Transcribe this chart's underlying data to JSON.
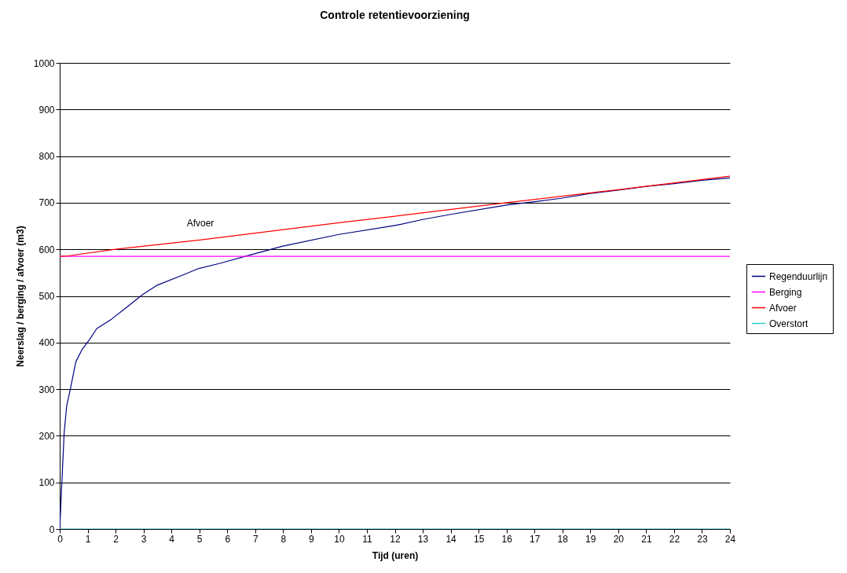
{
  "chart_data": {
    "type": "line",
    "title": "Controle retentievoorziening",
    "xlabel": "Tijd (uren)",
    "ylabel": "Neerslag / berging / afvoer (m3)",
    "xlim": [
      0,
      24
    ],
    "ylim": [
      0,
      1000
    ],
    "xticks": [
      0,
      1,
      2,
      3,
      4,
      5,
      6,
      7,
      8,
      9,
      10,
      11,
      12,
      13,
      14,
      15,
      16,
      17,
      18,
      19,
      20,
      21,
      22,
      23,
      24
    ],
    "yticks": [
      0,
      100,
      200,
      300,
      400,
      500,
      600,
      700,
      800,
      900,
      1000
    ],
    "grid": "y",
    "legend": "right",
    "annotations": [
      "Afvoer"
    ],
    "series": [
      {
        "name": "Regenduurlijn",
        "color": "#000080",
        "x": [
          0,
          0.16,
          0.25,
          0.39,
          0.58,
          0.8,
          1.05,
          1.33,
          1.85,
          2.36,
          2.97,
          3.49,
          4.42,
          4.98,
          5.74,
          6.77,
          7.99,
          10,
          12,
          13,
          14,
          16,
          17,
          18,
          19,
          20,
          21,
          22,
          23,
          24
        ],
        "values": [
          0,
          207,
          264,
          303,
          359,
          385,
          405,
          430,
          450,
          474,
          503,
          523,
          545,
          559,
          570,
          587,
          607,
          632,
          651,
          664,
          675,
          695,
          702,
          710,
          720,
          727,
          735,
          741,
          748,
          753
        ]
      },
      {
        "name": "Berging",
        "color": "#ff00ff",
        "x": [
          0,
          24
        ],
        "values": [
          585,
          585
        ]
      },
      {
        "name": "Afvoer",
        "color": "#ff0000",
        "x": [
          0,
          0.3,
          2,
          5,
          10,
          12,
          16,
          20,
          24
        ],
        "values": [
          585,
          586,
          600,
          620,
          657,
          671,
          700,
          728,
          757
        ]
      },
      {
        "name": "Overstort",
        "color": "#33cccc",
        "x": [
          0,
          24
        ],
        "values": [
          0,
          0
        ]
      }
    ]
  }
}
